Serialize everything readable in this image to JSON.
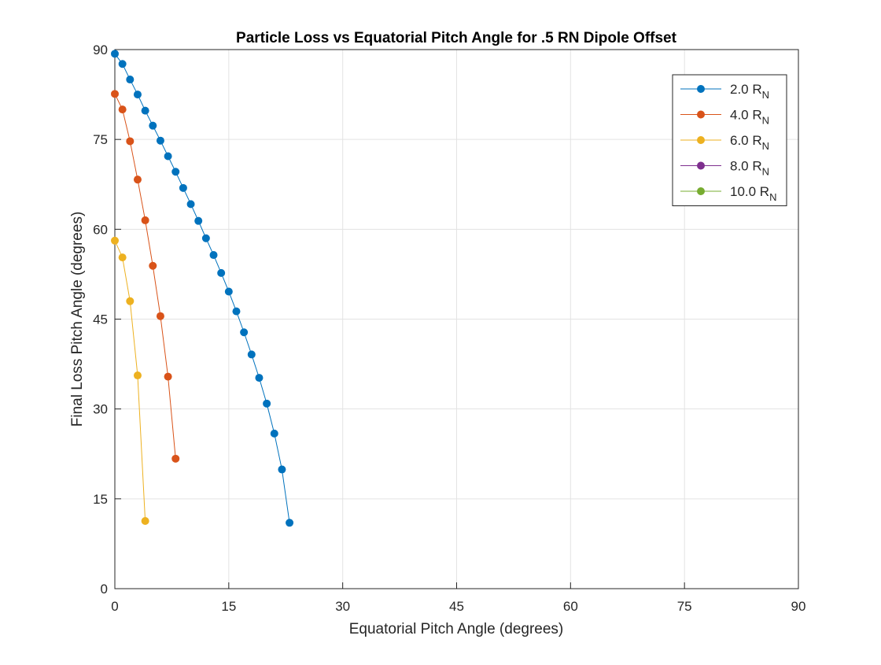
{
  "chart_data": {
    "type": "line",
    "title": "Particle Loss vs Equatorial Pitch Angle for .5 RN Dipole Offset",
    "xlabel": "Equatorial Pitch Angle (degrees)",
    "ylabel": "Final Loss Pitch Angle (degrees)",
    "xlim": [
      0,
      90
    ],
    "ylim": [
      0,
      90
    ],
    "xticks": [
      0,
      15,
      30,
      45,
      60,
      75,
      90
    ],
    "yticks": [
      0,
      15,
      30,
      45,
      60,
      75,
      90
    ],
    "grid": true,
    "legend_position": "top-right",
    "series": [
      {
        "name": "2.0 R",
        "name_sub": "N",
        "color": "#0072BD",
        "x": [
          0,
          1,
          2,
          3,
          4,
          5,
          6,
          7,
          8,
          9,
          10,
          11,
          12,
          13,
          14,
          15,
          16,
          17,
          18,
          19,
          20,
          21,
          22,
          23
        ],
        "y": [
          89.3,
          87.6,
          85.0,
          82.5,
          79.8,
          77.3,
          74.8,
          72.2,
          69.6,
          66.9,
          64.2,
          61.4,
          58.5,
          55.7,
          52.7,
          49.6,
          46.3,
          42.8,
          39.1,
          35.2,
          30.9,
          25.9,
          19.9,
          11.0
        ]
      },
      {
        "name": "4.0 R",
        "name_sub": "N",
        "color": "#D95319",
        "x": [
          0,
          1,
          2,
          3,
          4,
          5,
          6,
          7,
          8
        ],
        "y": [
          82.6,
          80.0,
          74.7,
          68.3,
          61.5,
          53.9,
          45.5,
          35.4,
          21.7
        ]
      },
      {
        "name": "6.0 R",
        "name_sub": "N",
        "color": "#EDB120",
        "x": [
          0,
          1,
          2,
          3,
          4
        ],
        "y": [
          58.1,
          55.3,
          48.0,
          35.6,
          11.3
        ]
      },
      {
        "name": "8.0 R",
        "name_sub": "N",
        "color": "#7E2F8E",
        "x": [],
        "y": []
      },
      {
        "name": "10.0 R",
        "name_sub": "N",
        "color": "#77AC30",
        "x": [],
        "y": []
      }
    ]
  }
}
